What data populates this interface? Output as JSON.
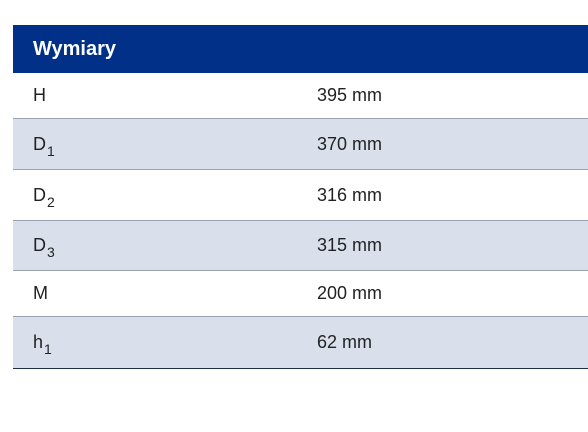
{
  "table": {
    "title": "Wymiary",
    "rows": [
      {
        "symbol": "H",
        "sub": "",
        "value": "395 mm"
      },
      {
        "symbol": "D",
        "sub": "1",
        "value": "370 mm"
      },
      {
        "symbol": "D",
        "sub": "2",
        "value": "316 mm"
      },
      {
        "symbol": "D",
        "sub": "3",
        "value": "315 mm"
      },
      {
        "symbol": "M",
        "sub": "",
        "value": "200 mm"
      },
      {
        "symbol": "h",
        "sub": "1",
        "value": "62 mm"
      }
    ]
  }
}
